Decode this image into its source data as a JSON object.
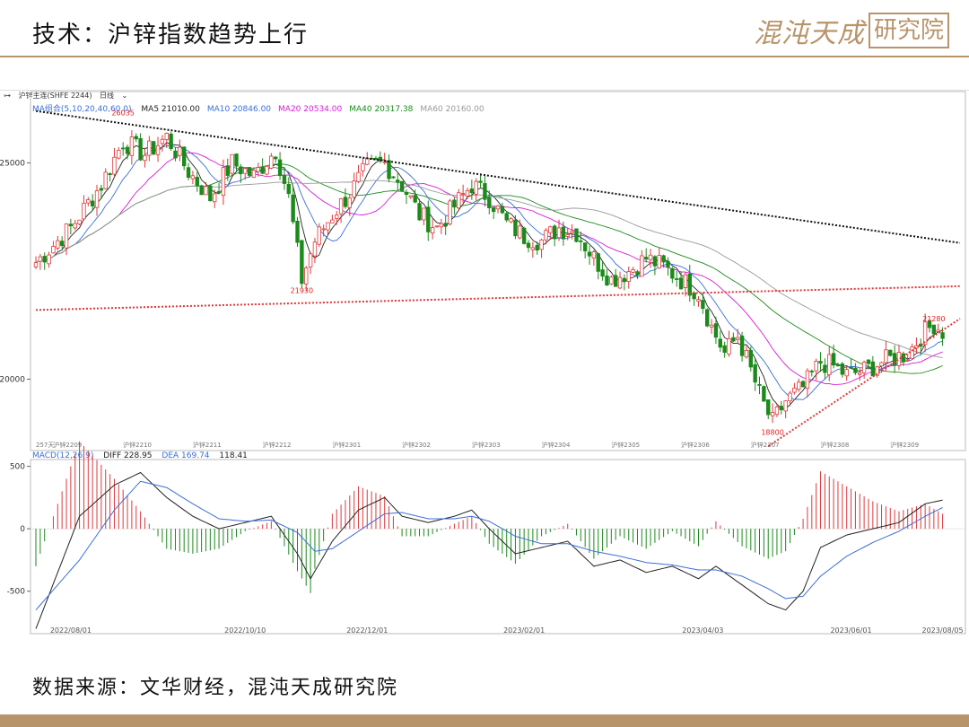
{
  "slide": {
    "title": "技术：沪锌指数趋势上行",
    "brand_script": "混沌天成",
    "brand_box": "研究院",
    "source": "数据来源：文华财经，混沌天成研究院"
  },
  "toolbar": {
    "instrument": "沪锌主连(SHFE 2244)",
    "period": "日线"
  },
  "ma_legend": {
    "label": "MA组合(5,10,20,40,60,0)",
    "items": [
      {
        "text": "MA5 21010.00",
        "color": "#222222"
      },
      {
        "text": "MA10 20846.00",
        "color": "#3a6fd8"
      },
      {
        "text": "MA20 20534.00",
        "color": "#d81bd8"
      },
      {
        "text": "MA40 20317.38",
        "color": "#1a8a1a"
      },
      {
        "text": "MA60 20160.00",
        "color": "#999999"
      }
    ]
  },
  "macd_legend": {
    "label": "MACD(12,26,9)",
    "diff": "DIFF 228.95",
    "dea": "DEA 169.74",
    "macd": "118.41"
  },
  "colors": {
    "up": "#e0383b",
    "down": "#1a8a1a",
    "trend": "#111111",
    "support": "#e0383b"
  },
  "chart_data": {
    "type": "candlestick",
    "price_axis": {
      "ticks": [
        25000,
        20000
      ],
      "ylim": [
        18350,
        26650
      ]
    },
    "macd_axis": {
      "ticks": [
        500,
        0,
        -500
      ],
      "ylim": [
        -840,
        540
      ]
    },
    "price_annotations": [
      {
        "text": "26035",
        "value": 26035
      },
      {
        "text": "21930",
        "value": 21930
      },
      {
        "text": "21280",
        "value": 21280
      },
      {
        "text": "18800",
        "value": 18800
      }
    ],
    "x_axis_dates": [
      "2022/08/01",
      "2022/10/10",
      "2022/12/01",
      "2023/02/01",
      "2023/04/03",
      "2023/06/01",
      "2023/08/05"
    ],
    "contract_labels": [
      "257天",
      "沪锌2209",
      "沪锌2210",
      "沪锌2211",
      "沪锌2212",
      "沪锌2301",
      "沪锌2302",
      "沪锌2303",
      "沪锌2304",
      "沪锌2305",
      "沪锌2306",
      "沪锌2307",
      "沪锌2308",
      "沪锌2309"
    ],
    "close_path": [
      [
        0,
        22700
      ],
      [
        8,
        23500
      ],
      [
        15,
        24500
      ],
      [
        20,
        25500
      ],
      [
        25,
        25200
      ],
      [
        30,
        25600
      ],
      [
        35,
        24800
      ],
      [
        40,
        24200
      ],
      [
        45,
        25000
      ],
      [
        50,
        24700
      ],
      [
        55,
        25300
      ],
      [
        58,
        24200
      ],
      [
        61,
        22300
      ],
      [
        64,
        23200
      ],
      [
        68,
        23800
      ],
      [
        72,
        24300
      ],
      [
        76,
        24900
      ],
      [
        80,
        25000
      ],
      [
        84,
        24500
      ],
      [
        88,
        23800
      ],
      [
        92,
        23500
      ],
      [
        96,
        24000
      ],
      [
        100,
        24500
      ],
      [
        104,
        24200
      ],
      [
        108,
        23600
      ],
      [
        112,
        23300
      ],
      [
        116,
        23200
      ],
      [
        120,
        23500
      ],
      [
        124,
        23400
      ],
      [
        128,
        22800
      ],
      [
        132,
        22300
      ],
      [
        136,
        22500
      ],
      [
        140,
        22800
      ],
      [
        144,
        22600
      ],
      [
        148,
        22300
      ],
      [
        152,
        22000
      ],
      [
        155,
        21200
      ],
      [
        158,
        20600
      ],
      [
        161,
        21000
      ],
      [
        164,
        20200
      ],
      [
        167,
        19400
      ],
      [
        169,
        19000
      ],
      [
        172,
        19500
      ],
      [
        176,
        19800
      ],
      [
        180,
        20400
      ],
      [
        183,
        20300
      ],
      [
        186,
        20100
      ],
      [
        190,
        20200
      ],
      [
        194,
        20400
      ],
      [
        197,
        20500
      ],
      [
        200,
        20600
      ],
      [
        203,
        21000
      ],
      [
        206,
        21280
      ],
      [
        208,
        21100
      ]
    ],
    "trendlines": [
      {
        "name": "下降压力线",
        "from": [
          0,
          26200
        ],
        "to": [
          212,
          23150
        ],
        "style": "black-dotted"
      },
      {
        "name": "支撑线",
        "from": [
          0,
          21600
        ],
        "to": [
          212,
          22150
        ],
        "style": "red-dotted"
      },
      {
        "name": "上升支撑线",
        "from": [
          168,
          18450
        ],
        "to": [
          212,
          21400
        ],
        "style": "red-dotted"
      }
    ],
    "macd": {
      "diff": [
        [
          0,
          -800
        ],
        [
          10,
          100
        ],
        [
          18,
          350
        ],
        [
          24,
          450
        ],
        [
          30,
          250
        ],
        [
          36,
          100
        ],
        [
          42,
          0
        ],
        [
          48,
          50
        ],
        [
          54,
          100
        ],
        [
          60,
          -200
        ],
        [
          63,
          -400
        ],
        [
          68,
          -100
        ],
        [
          74,
          150
        ],
        [
          80,
          250
        ],
        [
          84,
          100
        ],
        [
          90,
          50
        ],
        [
          96,
          100
        ],
        [
          100,
          150
        ],
        [
          104,
          0
        ],
        [
          110,
          -200
        ],
        [
          116,
          -150
        ],
        [
          122,
          -100
        ],
        [
          128,
          -300
        ],
        [
          134,
          -250
        ],
        [
          140,
          -350
        ],
        [
          146,
          -300
        ],
        [
          152,
          -400
        ],
        [
          156,
          -300
        ],
        [
          162,
          -450
        ],
        [
          168,
          -600
        ],
        [
          172,
          -650
        ],
        [
          176,
          -500
        ],
        [
          180,
          -150
        ],
        [
          186,
          -50
        ],
        [
          192,
          0
        ],
        [
          198,
          50
        ],
        [
          204,
          200
        ],
        [
          208,
          230
        ]
      ],
      "dea": [
        [
          0,
          -650
        ],
        [
          10,
          -250
        ],
        [
          18,
          150
        ],
        [
          24,
          380
        ],
        [
          30,
          330
        ],
        [
          36,
          200
        ],
        [
          42,
          80
        ],
        [
          48,
          60
        ],
        [
          54,
          70
        ],
        [
          60,
          -30
        ],
        [
          64,
          -180
        ],
        [
          68,
          -160
        ],
        [
          74,
          -20
        ],
        [
          80,
          120
        ],
        [
          84,
          130
        ],
        [
          90,
          80
        ],
        [
          96,
          80
        ],
        [
          100,
          100
        ],
        [
          104,
          60
        ],
        [
          110,
          -60
        ],
        [
          116,
          -120
        ],
        [
          122,
          -120
        ],
        [
          128,
          -180
        ],
        [
          134,
          -220
        ],
        [
          140,
          -270
        ],
        [
          146,
          -290
        ],
        [
          152,
          -330
        ],
        [
          156,
          -330
        ],
        [
          162,
          -380
        ],
        [
          168,
          -480
        ],
        [
          172,
          -560
        ],
        [
          176,
          -540
        ],
        [
          180,
          -380
        ],
        [
          186,
          -220
        ],
        [
          192,
          -110
        ],
        [
          198,
          -20
        ],
        [
          204,
          100
        ],
        [
          208,
          170
        ]
      ]
    }
  }
}
